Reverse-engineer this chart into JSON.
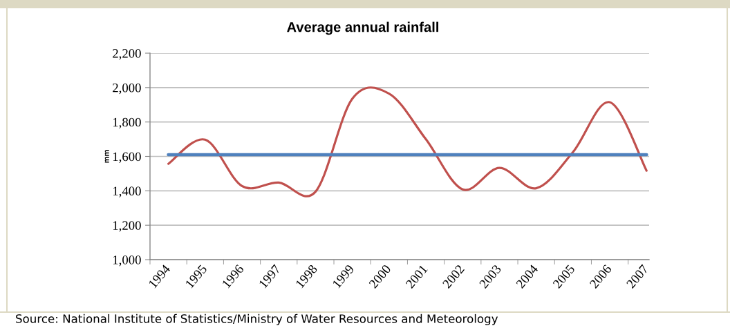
{
  "chart_data": {
    "type": "line",
    "title": "Average annual rainfall",
    "ylabel": "mm",
    "categories": [
      "1994",
      "1995",
      "1996",
      "1997",
      "1998",
      "1999",
      "2000",
      "2001",
      "2002",
      "2003",
      "2004",
      "2005",
      "2006",
      "2007"
    ],
    "series": [
      {
        "color": "#c0504d",
        "values": [
          1557,
          1697,
          1428,
          1448,
          1395,
          1935,
          1965,
          1700,
          1408,
          1533,
          1415,
          1625,
          1915,
          1517
        ]
      }
    ],
    "ylim": [
      1000,
      2200
    ],
    "yticks": [
      {
        "value": 1000,
        "label": "1,000"
      },
      {
        "value": 1200,
        "label": "1,200"
      },
      {
        "value": 1400,
        "label": "1,400"
      },
      {
        "value": 1600,
        "label": "1,600"
      },
      {
        "value": 1800,
        "label": "1,800"
      },
      {
        "value": 2000,
        "label": "2,000"
      },
      {
        "value": 2200,
        "label": "2,200"
      }
    ],
    "grid": "y",
    "ref_lines": [
      {
        "axis": "y",
        "value": 1610,
        "color": "#4f81bd"
      }
    ],
    "annotations": [
      "Source: National Institute of Statistics/Ministry of Water Resources and Meteorology"
    ]
  }
}
